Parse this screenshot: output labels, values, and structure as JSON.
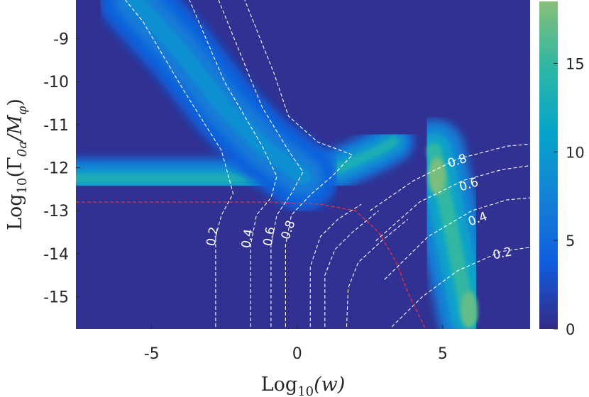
{
  "chart_data": {
    "type": "heatmap",
    "xlabel_base": "Log",
    "xlabel_sub": "10",
    "xlabel_arg": "(w)",
    "ylabel_base": "Log",
    "ylabel_sub": "10",
    "ylabel_arg": "(Γ",
    "ylabel_arg_sub": "0a",
    "ylabel_arg_mid": "/M",
    "ylabel_arg_sub2": "φ",
    "ylabel_close": ")",
    "xlim": [
      -7.6,
      8.0
    ],
    "ylim": [
      -15.75,
      -8.1
    ],
    "x_ticks": [
      -5,
      0,
      5
    ],
    "x_tick_labels": [
      "-5",
      "0",
      "5"
    ],
    "y_ticks": [
      -9,
      -10,
      -11,
      -12,
      -13,
      -14,
      -15
    ],
    "y_tick_labels": [
      "-9",
      "-10",
      "-11",
      "-12",
      "-13",
      "-14",
      "-15"
    ],
    "colorbar": {
      "range": [
        0,
        18.5
      ],
      "ticks": [
        0,
        5,
        10,
        15
      ],
      "tick_labels": [
        "0",
        "5",
        "10",
        "15"
      ],
      "colormap": "parula",
      "colors": [
        "#352a87",
        "#0f5cdd",
        "#1481d6",
        "#06a4ca",
        "#2eb7a4",
        "#87bf77"
      ]
    },
    "background_value": 0.5,
    "features": [
      {
        "name": "horizontal band",
        "value": 13,
        "polyline": [
          [
            -7.6,
            -12.25
          ],
          [
            -4,
            -12.25
          ],
          [
            -2,
            -12.25
          ],
          [
            0,
            -12.2
          ],
          [
            1.5,
            -12.0
          ],
          [
            2.8,
            -11.6
          ],
          [
            3.3,
            -11.4
          ]
        ],
        "width": 0.5
      },
      {
        "name": "diagonal band",
        "value": 9,
        "polyline": [
          [
            -5.6,
            -8.1
          ],
          [
            -4,
            -9.3
          ],
          [
            -2.5,
            -10.6
          ],
          [
            -1.2,
            -11.5
          ],
          [
            0.2,
            -12.2
          ]
        ],
        "width": 0.85
      },
      {
        "name": "right band",
        "value": 15,
        "polyline": [
          [
            4.7,
            -11.6
          ],
          [
            5.0,
            -12.5
          ],
          [
            5.3,
            -13.5
          ],
          [
            5.6,
            -14.5
          ],
          [
            5.9,
            -15.5
          ]
        ],
        "width": 0.75
      },
      {
        "name": "right peak",
        "value": 18,
        "point": [
          4.8,
          -12.2
        ]
      },
      {
        "name": "lower peak",
        "value": 17,
        "point": [
          5.9,
          -15.3
        ]
      }
    ],
    "contour_lines": [
      {
        "label": "0.2",
        "color": "#ffffff",
        "points": [
          [
            -2.8,
            -15.7
          ],
          [
            -2.8,
            -13.6
          ],
          [
            -2.6,
            -13.1
          ],
          [
            -2.2,
            -12.6
          ],
          [
            -2.6,
            -11.6
          ],
          [
            -3.9,
            -10.2
          ],
          [
            -5.3,
            -8.6
          ],
          [
            -5.9,
            -8.1
          ]
        ]
      },
      {
        "label": "0.4",
        "color": "#ffffff",
        "points": [
          [
            -1.6,
            -15.7
          ],
          [
            -1.6,
            -13.8
          ],
          [
            -1.4,
            -13.1
          ],
          [
            -0.9,
            -12.7
          ],
          [
            -0.7,
            -12.2
          ],
          [
            -1.2,
            -11.5
          ],
          [
            -2.5,
            -10.0
          ],
          [
            -3.7,
            -8.1
          ]
        ]
      },
      {
        "label": "0.6",
        "color": "#ffffff",
        "points": [
          [
            -0.9,
            -15.7
          ],
          [
            -0.9,
            -13.8
          ],
          [
            -0.7,
            -13.1
          ],
          [
            -0.2,
            -12.6
          ],
          [
            0.2,
            -12.1
          ],
          [
            -0.3,
            -11.6
          ],
          [
            -1.2,
            -10.6
          ],
          [
            -1.8,
            -9.6
          ],
          [
            -2.7,
            -8.1
          ]
        ]
      },
      {
        "label": "0.8",
        "color": "#ffffff",
        "points": [
          [
            -0.4,
            -15.7
          ],
          [
            -0.4,
            -13.8
          ],
          [
            -0.2,
            -13.1
          ],
          [
            0.5,
            -12.6
          ],
          [
            1.2,
            -12.2
          ],
          [
            1.9,
            -11.7
          ],
          [
            0.7,
            -11.4
          ],
          [
            -0.3,
            -10.8
          ],
          [
            -0.8,
            -9.8
          ],
          [
            -1.8,
            -8.1
          ]
        ]
      },
      {
        "label": "",
        "color": "#ffffff",
        "points": [
          [
            0.45,
            -15.7
          ],
          [
            0.45,
            -14.3
          ],
          [
            0.8,
            -13.6
          ],
          [
            1.4,
            -13.2
          ],
          [
            2.2,
            -12.85
          ]
        ]
      },
      {
        "label": "",
        "color": "#ffffff",
        "points": [
          [
            0.95,
            -15.7
          ],
          [
            0.95,
            -14.5
          ],
          [
            1.3,
            -13.9
          ],
          [
            1.9,
            -13.5
          ],
          [
            2.8,
            -13.0
          ]
        ]
      },
      {
        "label": "",
        "color": "#ffffff",
        "points": [
          [
            1.7,
            -15.7
          ],
          [
            1.75,
            -14.8
          ],
          [
            2.1,
            -14.2
          ],
          [
            2.9,
            -13.7
          ],
          [
            3.8,
            -13.2
          ]
        ]
      },
      {
        "label": "0.8",
        "color": "#ffffff",
        "points": [
          [
            2.5,
            -13.0
          ],
          [
            4.0,
            -12.3
          ],
          [
            5.5,
            -11.8
          ],
          [
            7.2,
            -11.5
          ],
          [
            8.0,
            -11.45
          ]
        ]
      },
      {
        "label": "0.6",
        "color": "#ffffff",
        "points": [
          [
            2.7,
            -13.7
          ],
          [
            4.2,
            -12.8
          ],
          [
            5.7,
            -12.3
          ],
          [
            7.0,
            -12.05
          ],
          [
            8.0,
            -11.95
          ]
        ]
      },
      {
        "label": "0.4",
        "color": "#ffffff",
        "points": [
          [
            3.0,
            -14.6
          ],
          [
            4.5,
            -13.6
          ],
          [
            6.0,
            -13.0
          ],
          [
            7.2,
            -12.75
          ],
          [
            8.0,
            -12.7
          ]
        ]
      },
      {
        "label": "0.2",
        "color": "#ffffff",
        "points": [
          [
            3.25,
            -15.7
          ],
          [
            4.3,
            -15.0
          ],
          [
            5.5,
            -14.4
          ],
          [
            7.0,
            -13.95
          ],
          [
            8.0,
            -13.85
          ]
        ]
      }
    ],
    "boundary_line": {
      "color": "#e0323c",
      "points": [
        [
          -7.6,
          -12.8
        ],
        [
          -4.0,
          -12.8
        ],
        [
          -1.0,
          -12.8
        ],
        [
          0.8,
          -12.85
        ],
        [
          2.0,
          -13.0
        ],
        [
          2.8,
          -13.5
        ],
        [
          3.4,
          -14.2
        ],
        [
          3.8,
          -14.9
        ],
        [
          4.3,
          -15.6
        ],
        [
          4.4,
          -15.75
        ]
      ]
    }
  }
}
